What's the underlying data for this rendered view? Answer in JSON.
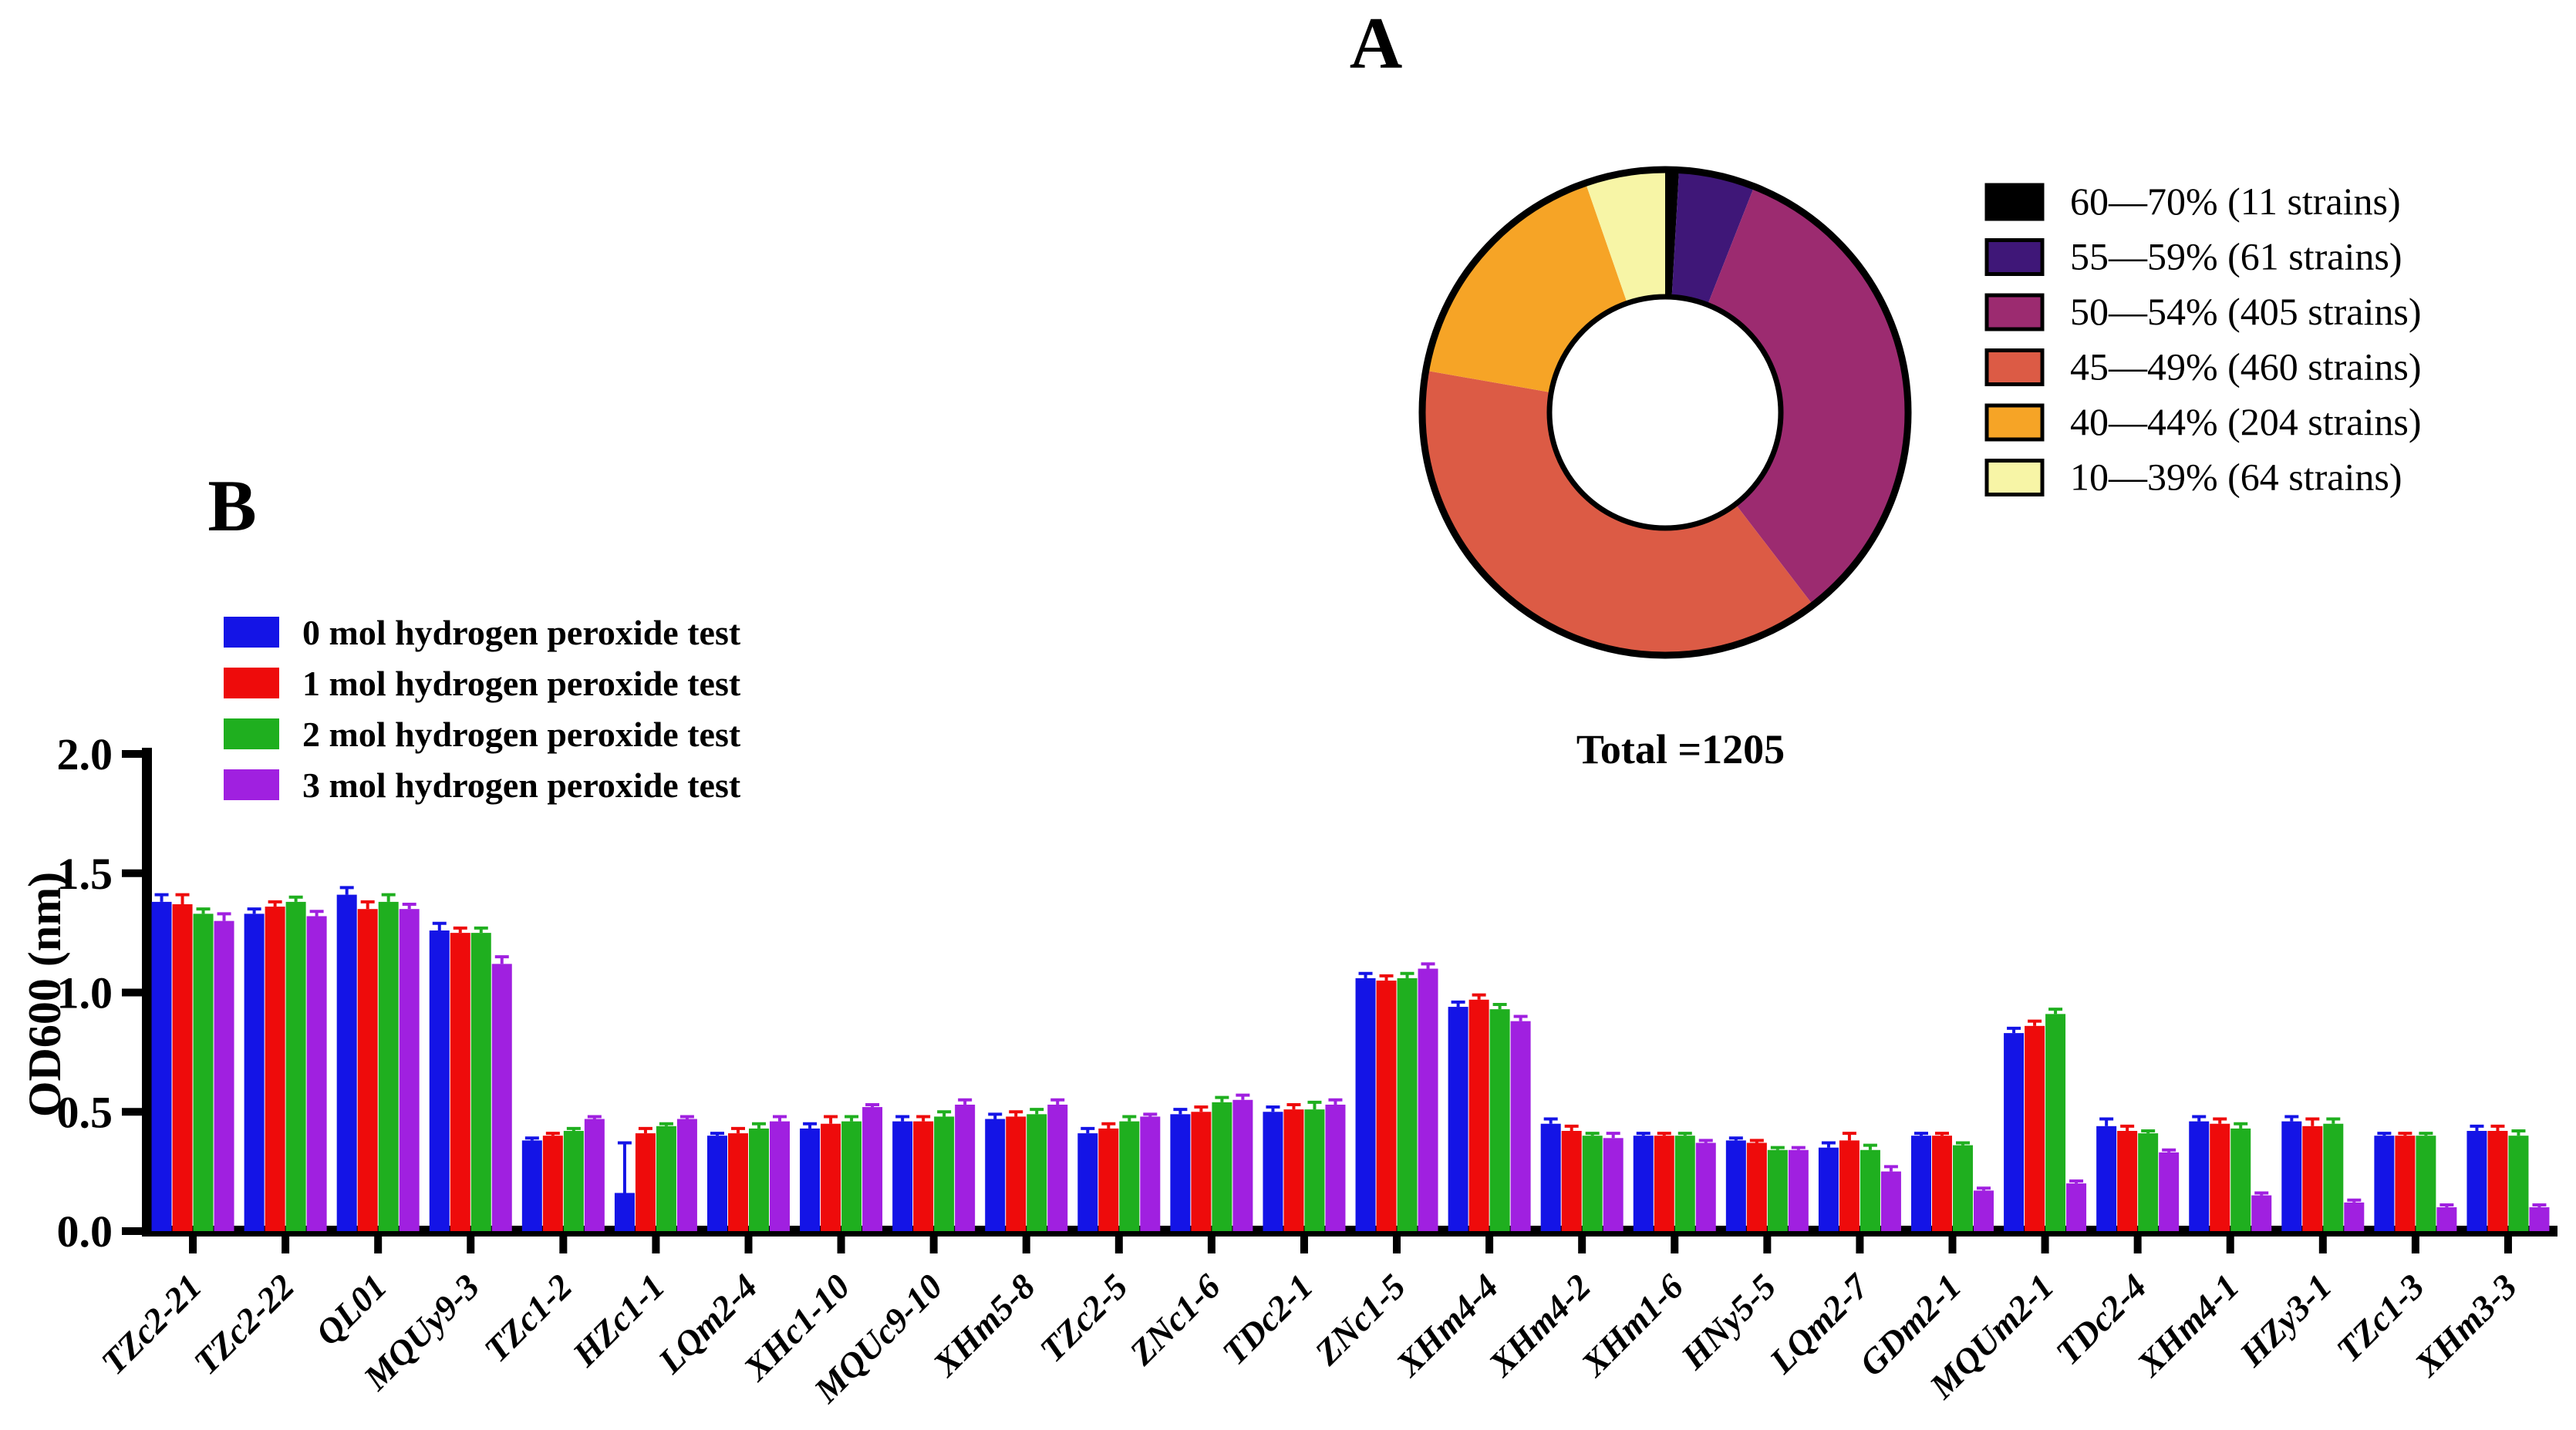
{
  "panel_a": {
    "label": "A"
  },
  "panel_b": {
    "label": "B"
  },
  "pie_summary": {
    "total_label": "Total =1205",
    "total": 1205
  },
  "colors": {
    "bar_blue": "#1414e6",
    "bar_red": "#ee0b0b",
    "bar_green": "#1fafff",
    "bar_purple": "#a020e0",
    "pie_black": "#000000",
    "pie_darkpurple": "#3f1778",
    "pie_magenta": "#9c2b70",
    "pie_redorange": "#dc5b45",
    "pie_orange": "#f6a426",
    "pie_yellow": "#f7f5a6"
  },
  "chart_data": [
    {
      "type": "pie",
      "title": "A",
      "style": "donut",
      "total": 1205,
      "total_label": "Total =1205",
      "start_angle_deg": -90,
      "direction": "clockwise",
      "legend_position": "right",
      "slices": [
        {
          "label": "60—70% (11 strains)",
          "value": 11,
          "color": "#000000"
        },
        {
          "label": "55—59% (61 strains)",
          "value": 61,
          "color": "#3f1778"
        },
        {
          "label": "50—54% (405 strains)",
          "value": 405,
          "color": "#9c2b70"
        },
        {
          "label": "45—49% (460 strains)",
          "value": 460,
          "color": "#dc5b45"
        },
        {
          "label": "40—44% (204 strains)",
          "value": 204,
          "color": "#f6a426"
        },
        {
          "label": "10—39% (64 strains)",
          "value": 64,
          "color": "#f7f5a6"
        }
      ]
    },
    {
      "type": "bar",
      "title": "B",
      "xlabel": "",
      "ylabel": "OD600 (nm)",
      "ylim": [
        0,
        2.0
      ],
      "yticks": [
        "0.0",
        "0.5",
        "1.0",
        "1.5",
        "2.0"
      ],
      "grid": false,
      "legend_position": "top-left",
      "categories": [
        "TZc2-21",
        "TZc2-22",
        "QL01",
        "MQUy9-3",
        "TZc1-2",
        "HZc1-1",
        "LQm2-4",
        "XHc1-10",
        "MQUc9-10",
        "XHm5-8",
        "TZc2-5",
        "ZNc1-6",
        "TDc2-1",
        "ZNc1-5",
        "XHm4-4",
        "XHm4-2",
        "XHm1-6",
        "HNy5-5",
        "LQm2-7",
        "GDm2-1",
        "MQUm2-1",
        "TDc2-4",
        "XHm4-1",
        "HZy3-1",
        "TZc1-3",
        "XHm3-3"
      ],
      "series": [
        {
          "name": "0 mol hydrogen peroxide test",
          "color": "#1414e6",
          "values": [
            1.38,
            1.33,
            1.41,
            1.26,
            0.38,
            0.16,
            0.4,
            0.43,
            0.46,
            0.47,
            0.41,
            0.49,
            0.5,
            1.06,
            0.94,
            0.45,
            0.4,
            0.38,
            0.35,
            0.4,
            0.83,
            0.44,
            0.46,
            0.46,
            0.4,
            0.42
          ],
          "errors": [
            0.03,
            0.02,
            0.03,
            0.03,
            0.01,
            0.21,
            0.01,
            0.02,
            0.02,
            0.02,
            0.02,
            0.02,
            0.02,
            0.02,
            0.02,
            0.02,
            0.01,
            0.01,
            0.02,
            0.01,
            0.02,
            0.03,
            0.02,
            0.02,
            0.01,
            0.02
          ]
        },
        {
          "name": "1 mol hydrogen peroxide test",
          "color": "#ee0b0b",
          "values": [
            1.37,
            1.36,
            1.35,
            1.25,
            0.4,
            0.41,
            0.41,
            0.45,
            0.46,
            0.48,
            0.43,
            0.5,
            0.51,
            1.05,
            0.97,
            0.42,
            0.4,
            0.37,
            0.38,
            0.4,
            0.86,
            0.42,
            0.45,
            0.44,
            0.4,
            0.42
          ],
          "errors": [
            0.04,
            0.02,
            0.03,
            0.02,
            0.01,
            0.02,
            0.02,
            0.03,
            0.02,
            0.02,
            0.02,
            0.02,
            0.02,
            0.02,
            0.02,
            0.02,
            0.01,
            0.01,
            0.03,
            0.01,
            0.02,
            0.02,
            0.02,
            0.03,
            0.01,
            0.02
          ]
        },
        {
          "name": "2 mol hydrogen peroxide test",
          "color": "#1faf1f",
          "values": [
            1.33,
            1.38,
            1.38,
            1.25,
            0.42,
            0.44,
            0.43,
            0.46,
            0.48,
            0.49,
            0.46,
            0.54,
            0.51,
            1.06,
            0.93,
            0.4,
            0.4,
            0.34,
            0.34,
            0.36,
            0.91,
            0.41,
            0.43,
            0.45,
            0.4,
            0.4
          ],
          "errors": [
            0.02,
            0.02,
            0.03,
            0.02,
            0.01,
            0.01,
            0.02,
            0.02,
            0.02,
            0.02,
            0.02,
            0.02,
            0.03,
            0.02,
            0.02,
            0.01,
            0.01,
            0.01,
            0.02,
            0.01,
            0.02,
            0.01,
            0.02,
            0.02,
            0.01,
            0.02
          ]
        },
        {
          "name": "3 mol hydrogen peroxide test",
          "color": "#a020e0",
          "values": [
            1.3,
            1.32,
            1.35,
            1.12,
            0.47,
            0.47,
            0.46,
            0.52,
            0.53,
            0.53,
            0.48,
            0.55,
            0.53,
            1.1,
            0.88,
            0.39,
            0.37,
            0.34,
            0.25,
            0.17,
            0.2,
            0.33,
            0.15,
            0.12,
            0.1,
            0.1
          ],
          "errors": [
            0.03,
            0.02,
            0.02,
            0.03,
            0.01,
            0.01,
            0.02,
            0.01,
            0.02,
            0.02,
            0.01,
            0.02,
            0.02,
            0.02,
            0.02,
            0.02,
            0.01,
            0.01,
            0.02,
            0.01,
            0.01,
            0.01,
            0.01,
            0.01,
            0.01,
            0.01
          ]
        }
      ]
    }
  ]
}
